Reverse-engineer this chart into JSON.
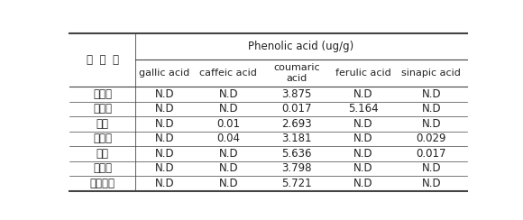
{
  "header_top": "Phenolic acid (ug/g)",
  "header_left": "자  원  명",
  "sub_headers": [
    "gallic acid",
    "caffeic acid",
    "coumaric\nacid",
    "ferulic acid",
    "sinapic acid"
  ],
  "rows": [
    [
      "조선무",
      "N.D",
      "N.D",
      "3.875",
      "N.D",
      "N.D"
    ],
    [
      "반청무",
      "N.D",
      "N.D",
      "0.017",
      "5.164",
      "N.D"
    ],
    [
      "왜무",
      "N.D",
      "0.01",
      "2.693",
      "N.D",
      "N.D"
    ],
    [
      "왜무꾼",
      "N.D",
      "0.04",
      "3.181",
      "N.D",
      "0.029"
    ],
    [
      "갯무",
      "N.D",
      "N.D",
      "5.636",
      "N.D",
      "0.017"
    ],
    [
      "게걸무",
      "N.D",
      "N.D",
      "3.798",
      "N.D",
      "N.D"
    ],
    [
      "콩발열무",
      "N.D",
      "N.D",
      "5.721",
      "N.D",
      "N.D"
    ]
  ],
  "bg_color": "#ffffff",
  "text_color": "#222222",
  "line_color": "#444444",
  "font_size": 8.5,
  "header_font_size": 8.5
}
